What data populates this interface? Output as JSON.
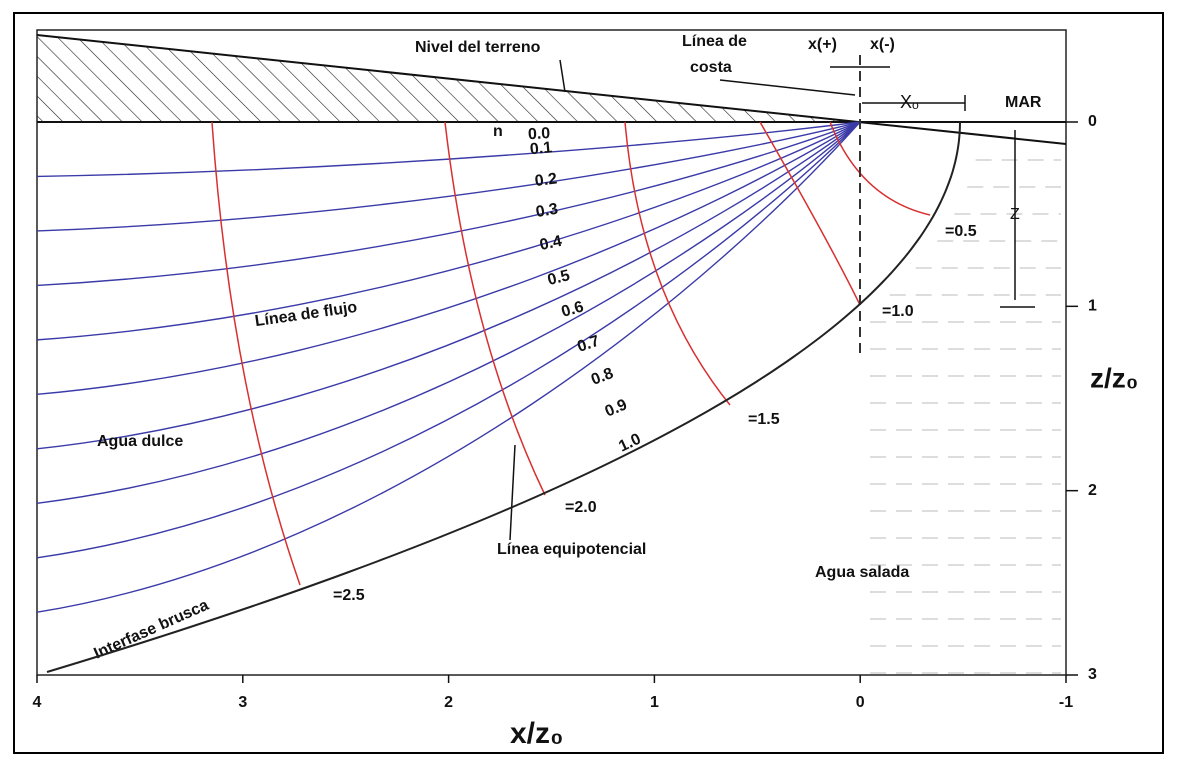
{
  "ground_label": "Nivel del terreno",
  "coast_label": [
    "Línea de",
    "costa"
  ],
  "x_plus": "x(+)",
  "x_minus": "x(-)",
  "x0_label": "Xₒ",
  "sea_label": "MAR",
  "z_label": "Z",
  "n_label": "n",
  "flow_labels": [
    "0.0",
    "0.1",
    "0.2",
    "0.3",
    "0.4",
    "0.5",
    "0.6",
    "0.7",
    "0.8",
    "0.9",
    "1.0"
  ],
  "equipotential_labels": [
    "=0.5",
    "=1.0",
    "=1.5",
    "=2.0",
    "=2.5"
  ],
  "flow_line_label": "Línea de flujo",
  "fresh_water": "Agua dulce",
  "salt_water": "Agua salada",
  "interface_label": "Interfase brusca",
  "equipotential_line_label": "Línea equipotencial",
  "x_axis": {
    "label": "x/z₀",
    "ticks": [
      4,
      3,
      2,
      1,
      0,
      -1
    ]
  },
  "z_axis": {
    "label": "z/z₀",
    "ticks": [
      0,
      1,
      2,
      3
    ]
  }
}
